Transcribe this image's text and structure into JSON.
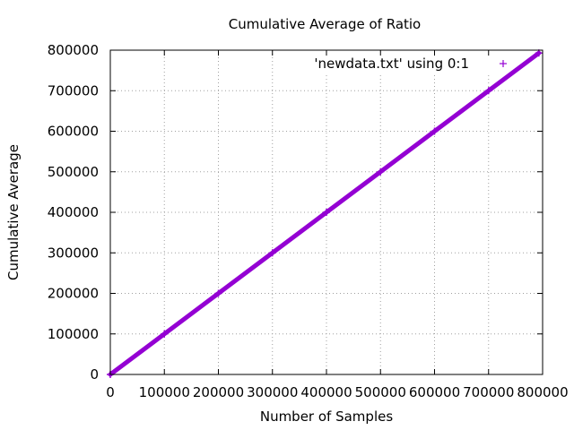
{
  "chart_data": {
    "type": "scatter",
    "title": "Cumulative Average of Ratio",
    "xlabel": "Number of Samples",
    "ylabel": "Cumulative Average",
    "xlim": [
      0,
      800000
    ],
    "ylim": [
      0,
      800000
    ],
    "xticks": [
      "0",
      "100000",
      "200000",
      "300000",
      "400000",
      "500000",
      "600000",
      "700000",
      "800000"
    ],
    "yticks": [
      "0",
      "100000",
      "200000",
      "300000",
      "400000",
      "500000",
      "600000",
      "700000",
      "800000"
    ],
    "grid": true,
    "legend_position": "top-right",
    "series": [
      {
        "name": "'newdata.txt' using 0:1",
        "color": "#9400d3",
        "marker": "+",
        "x": [
          0,
          100000,
          200000,
          300000,
          400000,
          500000,
          600000,
          700000,
          793000
        ],
        "y": [
          0,
          100000,
          200000,
          300000,
          400000,
          500000,
          600000,
          700000,
          793000
        ]
      }
    ]
  }
}
